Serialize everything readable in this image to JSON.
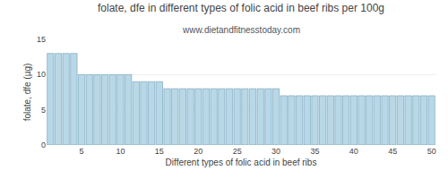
{
  "chart_data": {
    "type": "bar",
    "title": "folate, dfe in different types of folic acid in beef ribs per 100g",
    "subtitle": "www.dietandfitnesstoday.com",
    "xlabel": "Different types of folic acid in beef ribs",
    "ylabel": "folate, dfe (µg)",
    "categories": [
      null,
      null,
      null,
      null,
      "5",
      null,
      null,
      null,
      null,
      "10",
      null,
      null,
      null,
      null,
      "15",
      null,
      null,
      null,
      null,
      "20",
      null,
      null,
      null,
      null,
      "25",
      null,
      null,
      null,
      null,
      "30",
      null,
      null,
      null,
      null,
      "35",
      null,
      null,
      null,
      null,
      "40",
      null,
      null,
      null,
      null,
      "45",
      null,
      null,
      null,
      null,
      "50"
    ],
    "values": [
      13,
      13,
      13,
      13,
      10,
      10,
      10,
      10,
      10,
      10,
      10,
      9,
      9,
      9,
      9,
      8,
      8,
      8,
      8,
      8,
      8,
      8,
      8,
      8,
      8,
      8,
      8,
      8,
      8,
      8,
      7,
      7,
      7,
      7,
      7,
      7,
      7,
      7,
      7,
      7,
      7,
      7,
      7,
      7,
      7,
      7,
      7,
      7,
      7,
      7
    ],
    "color": "#b8d8e8",
    "ylim": [
      0,
      15
    ],
    "yticks": [
      0,
      5,
      10,
      15
    ],
    "grid": true
  }
}
